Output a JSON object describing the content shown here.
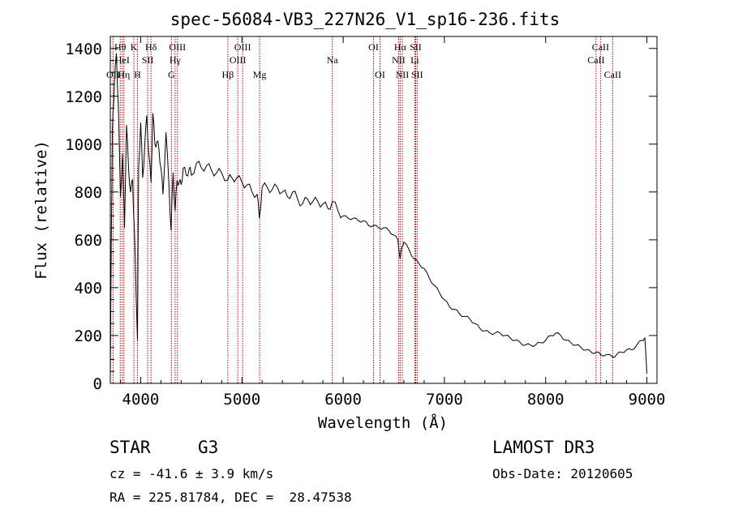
{
  "header": {
    "title": "spec-56084-VB3_227N26_V1_sp16-236.fits"
  },
  "footer": {
    "object_class": "STAR",
    "subclass": "G3",
    "survey": "LAMOST DR3",
    "redshift": "cz = -41.6 ± 3.9 km/s",
    "obs_date": "Obs-Date: 20120605",
    "coords": "RA = 225.81784, DEC =  28.47538"
  },
  "chart_data": {
    "type": "line",
    "title": "spec-56084-VB3_227N26_V1_sp16-236.fits",
    "xlabel": "Wavelength (Å)",
    "ylabel": "Flux (relative)",
    "xlim": [
      3700,
      9100
    ],
    "ylim": [
      0,
      1450
    ],
    "xticks": [
      4000,
      5000,
      6000,
      7000,
      8000,
      9000
    ],
    "yticks": [
      0,
      200,
      400,
      600,
      800,
      1000,
      1200,
      1400
    ],
    "series": [
      {
        "name": "flux",
        "x": [
          3700,
          3710,
          3720,
          3730,
          3740,
          3760,
          3780,
          3800,
          3820,
          3840,
          3860,
          3880,
          3900,
          3920,
          3933,
          3945,
          3968,
          3980,
          4000,
          4020,
          4040,
          4060,
          4080,
          4102,
          4120,
          4140,
          4160,
          4180,
          4200,
          4220,
          4250,
          4280,
          4300,
          4320,
          4340,
          4360,
          4380,
          4400,
          4420,
          4450,
          4480,
          4500,
          4550,
          4600,
          4650,
          4700,
          4750,
          4800,
          4861,
          4900,
          4950,
          5000,
          5050,
          5100,
          5150,
          5172,
          5200,
          5250,
          5300,
          5350,
          5400,
          5450,
          5500,
          5550,
          5600,
          5650,
          5700,
          5750,
          5800,
          5850,
          5893,
          5950,
          6000,
          6050,
          6100,
          6150,
          6200,
          6250,
          6300,
          6350,
          6400,
          6450,
          6500,
          6540,
          6563,
          6580,
          6600,
          6650,
          6700,
          6750,
          6800,
          6850,
          6900,
          6950,
          7000,
          7050,
          7100,
          7150,
          7200,
          7250,
          7300,
          7350,
          7400,
          7450,
          7500,
          7550,
          7600,
          7650,
          7700,
          7750,
          7800,
          7850,
          7900,
          7950,
          8000,
          8050,
          8100,
          8150,
          8200,
          8250,
          8300,
          8350,
          8400,
          8450,
          8500,
          8542,
          8600,
          8662,
          8700,
          8750,
          8800,
          8850,
          8900,
          8950,
          8980,
          9000
        ],
        "values": [
          20,
          600,
          1050,
          1150,
          1250,
          1380,
          1150,
          780,
          960,
          650,
          1080,
          900,
          800,
          850,
          680,
          550,
          180,
          900,
          1090,
          860,
          990,
          1120,
          960,
          840,
          1130,
          1000,
          1010,
          980,
          900,
          790,
          1050,
          820,
          640,
          880,
          720,
          850,
          840,
          830,
          900,
          870,
          900,
          870,
          920,
          900,
          910,
          890,
          880,
          880,
          850,
          860,
          860,
          840,
          830,
          800,
          790,
          690,
          820,
          820,
          810,
          820,
          800,
          780,
          800,
          770,
          750,
          770,
          760,
          760,
          750,
          730,
          760,
          720,
          700,
          690,
          690,
          680,
          680,
          660,
          660,
          650,
          650,
          640,
          620,
          600,
          520,
          570,
          590,
          560,
          520,
          500,
          480,
          440,
          410,
          380,
          350,
          320,
          310,
          290,
          280,
          270,
          250,
          230,
          220,
          210,
          210,
          210,
          200,
          190,
          180,
          170,
          160,
          160,
          160,
          170,
          180,
          200,
          210,
          200,
          180,
          170,
          160,
          150,
          140,
          130,
          130,
          120,
          120,
          110,
          120,
          130,
          140,
          140,
          160,
          180,
          190,
          40
        ]
      }
    ],
    "lines": [
      {
        "label": "OII",
        "wl": 3727,
        "row": 3
      },
      {
        "label": "Hθ",
        "wl": 3798,
        "row": 1
      },
      {
        "label": "HeI",
        "wl": 3819,
        "row": 2
      },
      {
        "label": "Hη",
        "wl": 3835,
        "row": 3
      },
      {
        "label": "K",
        "wl": 3933,
        "row": 1
      },
      {
        "label": "SII",
        "wl": 4069,
        "row": 2
      },
      {
        "label": "H",
        "wl": 3968,
        "row": 3
      },
      {
        "label": "Hδ",
        "wl": 4102,
        "row": 1
      },
      {
        "label": "OIII",
        "wl": 4363,
        "row": 1
      },
      {
        "label": "Hγ",
        "wl": 4340,
        "row": 2
      },
      {
        "label": "G",
        "wl": 4304,
        "row": 3
      },
      {
        "label": "Hβ",
        "wl": 4861,
        "row": 3
      },
      {
        "label": "OIII",
        "wl": 5007,
        "row": 1
      },
      {
        "label": "OIII",
        "wl": 4959,
        "row": 2
      },
      {
        "label": "Mg",
        "wl": 5175,
        "row": 3
      },
      {
        "label": "Na",
        "wl": 5893,
        "row": 2
      },
      {
        "label": "OI",
        "wl": 6300,
        "row": 1
      },
      {
        "label": "OI",
        "wl": 6364,
        "row": 3
      },
      {
        "label": "Hα",
        "wl": 6563,
        "row": 1
      },
      {
        "label": "SII",
        "wl": 6716,
        "row": 1
      },
      {
        "label": "NII",
        "wl": 6548,
        "row": 2
      },
      {
        "label": "Li",
        "wl": 6708,
        "row": 2
      },
      {
        "label": "NII",
        "wl": 6584,
        "row": 3
      },
      {
        "label": "SII",
        "wl": 6731,
        "row": 3
      },
      {
        "label": "CaII",
        "wl": 8542,
        "row": 1
      },
      {
        "label": "CaII",
        "wl": 8498,
        "row": 2
      },
      {
        "label": "CaII",
        "wl": 8662,
        "row": 3
      }
    ]
  }
}
